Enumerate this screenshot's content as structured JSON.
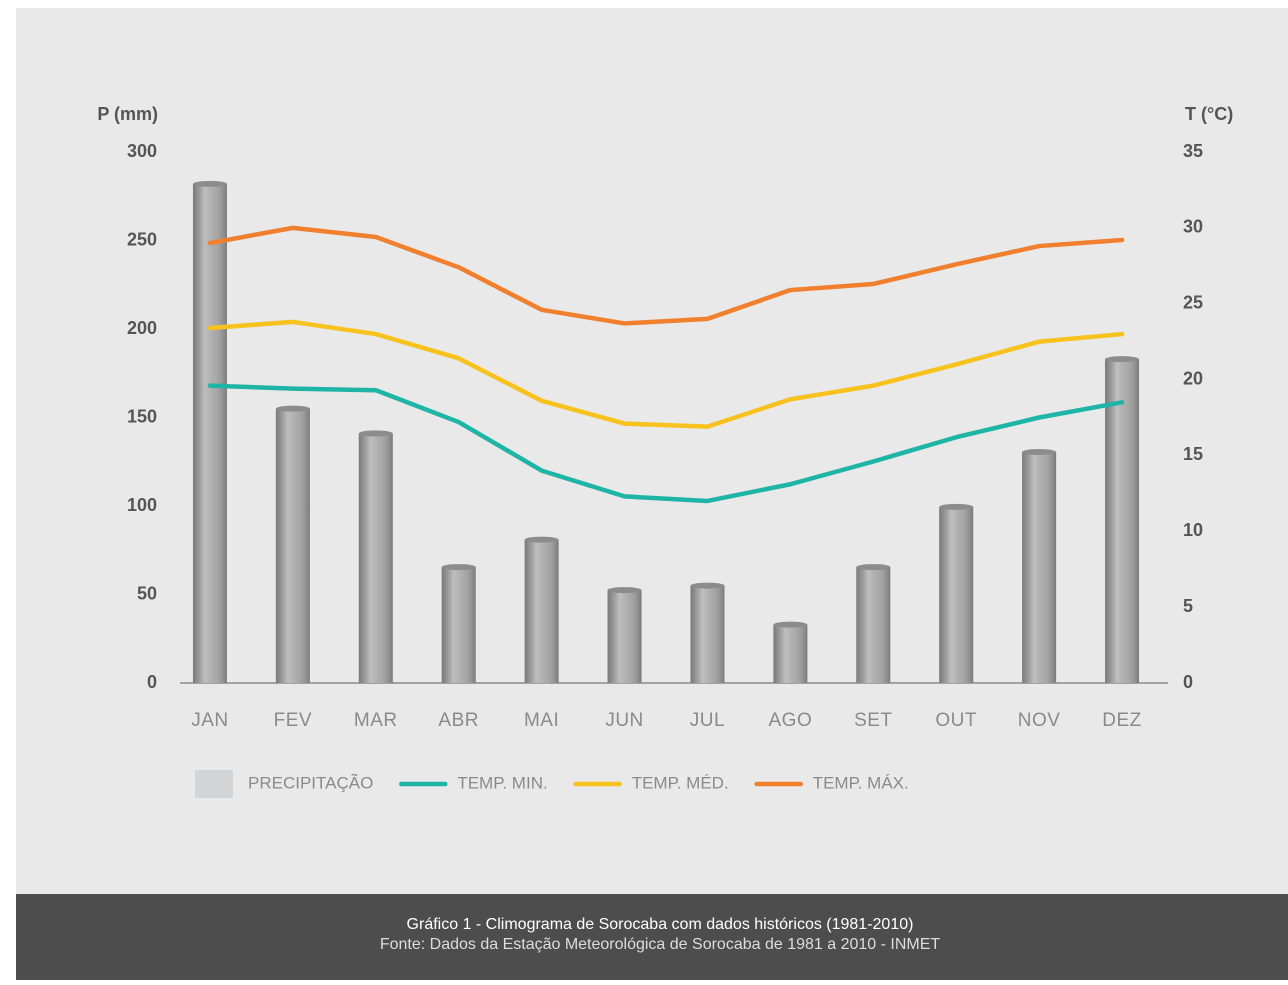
{
  "chart_data": {
    "type": "bar",
    "y_label": "P (mm)",
    "y2_label": "T (°C)",
    "categories": [
      "JAN",
      "FEV",
      "MAR",
      "ABR",
      "MAI",
      "JUN",
      "JUL",
      "AGO",
      "SET",
      "OUT",
      "NOV",
      "DEZ"
    ],
    "ylim": [
      0,
      300
    ],
    "yticks": [
      0,
      50,
      100,
      150,
      200,
      250,
      300
    ],
    "y2lim": [
      0,
      35
    ],
    "y2ticks": [
      0,
      5,
      10,
      15,
      20,
      25,
      30,
      35
    ],
    "series": [
      {
        "name": "PRECIPITAÇÃO",
        "type": "bar",
        "color": "#a3a3a3",
        "values": [
          282,
          155,
          141,
          65.5,
          81,
          52.5,
          55,
          33,
          65.5,
          99.5,
          130.5,
          183
        ]
      },
      {
        "name": "TEMP. MIN.",
        "type": "line",
        "axis": "y2",
        "color": "#1fb5a6",
        "values": [
          19.6,
          19.4,
          19.3,
          17.2,
          14.0,
          12.3,
          12.0,
          13.1,
          14.6,
          16.2,
          17.5,
          18.5
        ]
      },
      {
        "name": "TEMP. MÉD.",
        "type": "line",
        "axis": "y2",
        "color": "#f7c21d",
        "values": [
          23.4,
          23.8,
          23.0,
          21.4,
          18.6,
          17.1,
          16.9,
          18.7,
          19.6,
          21.0,
          22.5,
          23.0
        ]
      },
      {
        "name": "TEMP. MÁX.",
        "type": "line",
        "axis": "y2",
        "color": "#f07f2e",
        "values": [
          29.0,
          30.0,
          29.4,
          27.4,
          24.6,
          23.7,
          24.0,
          25.9,
          26.3,
          27.6,
          28.8,
          29.2
        ]
      }
    ]
  },
  "footer": {
    "title": "Gráfico 1 - Climograma de Sorocaba com dados históricos (1981-2010)",
    "source": "Fonte: Dados da Estação Meteorológica de Sorocaba de 1981 a 2010 - INMET"
  }
}
